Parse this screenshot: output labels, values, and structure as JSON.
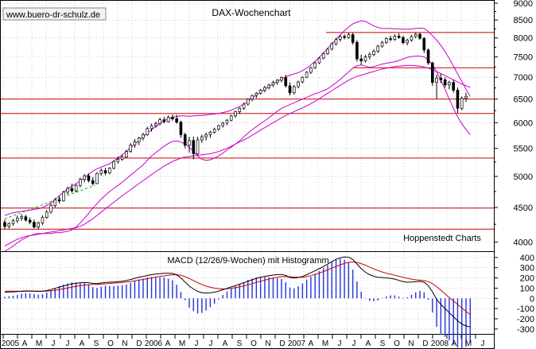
{
  "chart_data": {
    "type": "candlestick",
    "title": "DAX-Wochenchart",
    "watermark": "www.buero-dr-schulz.de",
    "source_label": "Hoppenstedt Charts",
    "price_axis": {
      "ticks": [
        4000,
        4500,
        5000,
        5500,
        6000,
        6500,
        7000,
        7500,
        8000,
        8500,
        9000
      ],
      "scale": "log",
      "range": [
        3900,
        9050
      ]
    },
    "horizontal_lines": [
      8150,
      7230,
      6500,
      6190,
      5320,
      4490,
      4180
    ],
    "candles": [
      [
        4280,
        4320,
        4180,
        4220
      ],
      [
        4220,
        4280,
        4190,
        4260
      ],
      [
        4260,
        4330,
        4230,
        4300
      ],
      [
        4300,
        4380,
        4270,
        4340
      ],
      [
        4340,
        4400,
        4300,
        4360
      ],
      [
        4360,
        4390,
        4290,
        4310
      ],
      [
        4310,
        4350,
        4250,
        4280
      ],
      [
        4280,
        4320,
        4190,
        4210
      ],
      [
        4210,
        4290,
        4180,
        4270
      ],
      [
        4270,
        4380,
        4240,
        4350
      ],
      [
        4350,
        4460,
        4330,
        4430
      ],
      [
        4430,
        4560,
        4410,
        4530
      ],
      [
        4530,
        4650,
        4500,
        4620
      ],
      [
        4620,
        4680,
        4560,
        4600
      ],
      [
        4600,
        4760,
        4590,
        4740
      ],
      [
        4740,
        4830,
        4700,
        4800
      ],
      [
        4800,
        4880,
        4730,
        4760
      ],
      [
        4760,
        4870,
        4740,
        4850
      ],
      [
        4850,
        4980,
        4820,
        4950
      ],
      [
        4950,
        5040,
        4900,
        5010
      ],
      [
        5010,
        5050,
        4900,
        4930
      ],
      [
        4930,
        4990,
        4850,
        4880
      ],
      [
        4880,
        5070,
        4870,
        5050
      ],
      [
        5050,
        5140,
        5010,
        5100
      ],
      [
        5100,
        5150,
        5020,
        5060
      ],
      [
        5060,
        5160,
        5040,
        5140
      ],
      [
        5140,
        5280,
        5120,
        5260
      ],
      [
        5260,
        5350,
        5220,
        5300
      ],
      [
        5300,
        5380,
        5270,
        5340
      ],
      [
        5340,
        5470,
        5320,
        5440
      ],
      [
        5440,
        5600,
        5420,
        5560
      ],
      [
        5560,
        5680,
        5510,
        5620
      ],
      [
        5620,
        5720,
        5560,
        5700
      ],
      [
        5700,
        5800,
        5650,
        5760
      ],
      [
        5760,
        5920,
        5740,
        5880
      ],
      [
        5880,
        5980,
        5820,
        5940
      ],
      [
        5940,
        6020,
        5900,
        5980
      ],
      [
        5980,
        6100,
        5950,
        6060
      ],
      [
        6060,
        6120,
        5990,
        6020
      ],
      [
        6020,
        6150,
        6000,
        6110
      ],
      [
        6110,
        6170,
        6040,
        6080
      ],
      [
        6080,
        6160,
        5980,
        6010
      ],
      [
        6010,
        6040,
        5700,
        5760
      ],
      [
        5760,
        5800,
        5500,
        5560
      ],
      [
        5560,
        5720,
        5420,
        5650
      ],
      [
        5650,
        5720,
        5300,
        5400
      ],
      [
        5400,
        5720,
        5380,
        5660
      ],
      [
        5660,
        5760,
        5600,
        5720
      ],
      [
        5720,
        5800,
        5650,
        5760
      ],
      [
        5760,
        5840,
        5700,
        5810
      ],
      [
        5810,
        5900,
        5780,
        5870
      ],
      [
        5870,
        5960,
        5840,
        5940
      ],
      [
        5940,
        6020,
        5900,
        5990
      ],
      [
        5990,
        6080,
        5950,
        6050
      ],
      [
        6050,
        6160,
        6030,
        6140
      ],
      [
        6140,
        6250,
        6100,
        6230
      ],
      [
        6230,
        6320,
        6180,
        6300
      ],
      [
        6300,
        6420,
        6270,
        6390
      ],
      [
        6390,
        6520,
        6360,
        6500
      ],
      [
        6500,
        6600,
        6450,
        6580
      ],
      [
        6580,
        6660,
        6520,
        6630
      ],
      [
        6630,
        6730,
        6600,
        6700
      ],
      [
        6700,
        6800,
        6650,
        6760
      ],
      [
        6760,
        6850,
        6720,
        6820
      ],
      [
        6820,
        6920,
        6770,
        6880
      ],
      [
        6880,
        6960,
        6820,
        6930
      ],
      [
        6930,
        7020,
        6880,
        6990
      ],
      [
        6990,
        7060,
        6760,
        6800
      ],
      [
        6800,
        6880,
        6580,
        6640
      ],
      [
        6640,
        6820,
        6600,
        6780
      ],
      [
        6780,
        6920,
        6740,
        6890
      ],
      [
        6890,
        7020,
        6860,
        7000
      ],
      [
        7000,
        7150,
        6980,
        7120
      ],
      [
        7120,
        7260,
        7080,
        7230
      ],
      [
        7230,
        7380,
        7200,
        7350
      ],
      [
        7350,
        7500,
        7320,
        7470
      ],
      [
        7470,
        7620,
        7440,
        7580
      ],
      [
        7580,
        7740,
        7550,
        7700
      ],
      [
        7700,
        7880,
        7670,
        7840
      ],
      [
        7840,
        8000,
        7800,
        7960
      ],
      [
        7960,
        8080,
        7900,
        8040
      ],
      [
        8040,
        8100,
        7960,
        8010
      ],
      [
        8010,
        8140,
        7980,
        8090
      ],
      [
        8090,
        8140,
        7820,
        7880
      ],
      [
        7880,
        7940,
        7380,
        7450
      ],
      [
        7450,
        7560,
        7300,
        7400
      ],
      [
        7400,
        7560,
        7360,
        7500
      ],
      [
        7500,
        7620,
        7440,
        7560
      ],
      [
        7560,
        7700,
        7520,
        7650
      ],
      [
        7650,
        7820,
        7600,
        7780
      ],
      [
        7780,
        7920,
        7740,
        7880
      ],
      [
        7880,
        8020,
        7840,
        7980
      ],
      [
        7980,
        8060,
        7900,
        7960
      ],
      [
        7960,
        8100,
        7920,
        8050
      ],
      [
        8050,
        8130,
        7980,
        8010
      ],
      [
        8010,
        8060,
        7830,
        7870
      ],
      [
        7870,
        7980,
        7800,
        7940
      ],
      [
        7940,
        8080,
        7900,
        8040
      ],
      [
        8040,
        8150,
        7990,
        8100
      ],
      [
        8100,
        8140,
        7950,
        7990
      ],
      [
        7990,
        8020,
        7600,
        7680
      ],
      [
        7680,
        7720,
        7300,
        7350
      ],
      [
        7350,
        7380,
        6800,
        6880
      ],
      [
        6880,
        7060,
        6500,
        6980
      ],
      [
        6980,
        7080,
        6860,
        6940
      ],
      [
        6940,
        7000,
        6760,
        6820
      ],
      [
        6820,
        6920,
        6720,
        6880
      ],
      [
        6880,
        6940,
        6640,
        6700
      ],
      [
        6700,
        6760,
        6200,
        6300
      ],
      [
        6300,
        6560,
        6260,
        6520
      ],
      [
        6520,
        6640,
        6440,
        6560
      ]
    ],
    "bollinger_upper": [
      4380,
      4400,
      4420,
      4430,
      4440,
      4450,
      4460,
      4470,
      4480,
      4500,
      4530,
      4570,
      4620,
      4680,
      4740,
      4790,
      4840,
      4880,
      4920,
      4980,
      5040,
      5090,
      5130,
      5160,
      5190,
      5220,
      5270,
      5320,
      5380,
      5440,
      5510,
      5580,
      5650,
      5720,
      5790,
      5860,
      5920,
      5980,
      6040,
      6080,
      6110,
      6130,
      6140,
      6140,
      6130,
      6140,
      6150,
      6150,
      6160,
      6170,
      6180,
      6190,
      6210,
      6230,
      6260,
      6300,
      6340,
      6390,
      6450,
      6520,
      6590,
      6660,
      6720,
      6780,
      6840,
      6900,
      6960,
      7010,
      7050,
      7080,
      7110,
      7160,
      7220,
      7300,
      7390,
      7490,
      7600,
      7720,
      7840,
      7960,
      8080,
      8200,
      8300,
      8390,
      8440,
      8480,
      8460,
      8400,
      8330,
      8290,
      8260,
      8260,
      8260,
      8250,
      8250,
      8240,
      8240,
      8250,
      8260,
      8270,
      8260,
      8180,
      8060,
      7940,
      7800,
      7640,
      7460,
      7270,
      7080,
      6900,
      6720,
      6560
    ],
    "bollinger_lower": [
      3880,
      3910,
      3950,
      3990,
      4030,
      4060,
      4090,
      4110,
      4120,
      4120,
      4120,
      4120,
      4130,
      4130,
      4140,
      4150,
      4170,
      4210,
      4270,
      4340,
      4410,
      4490,
      4560,
      4630,
      4690,
      4750,
      4800,
      4850,
      4900,
      4960,
      5020,
      5080,
      5140,
      5200,
      5280,
      5360,
      5420,
      5480,
      5540,
      5590,
      5630,
      5640,
      5620,
      5580,
      5520,
      5440,
      5360,
      5300,
      5280,
      5290,
      5320,
      5360,
      5410,
      5470,
      5520,
      5580,
      5640,
      5720,
      5790,
      5860,
      5920,
      5980,
      6040,
      6100,
      6170,
      6240,
      6300,
      6340,
      6380,
      6420,
      6460,
      6500,
      6540,
      6580,
      6620,
      6650,
      6690,
      6730,
      6800,
      6870,
      6950,
      7040,
      7130,
      7220,
      7280,
      7300,
      7270,
      7240,
      7260,
      7290,
      7320,
      7340,
      7360,
      7380,
      7410,
      7450,
      7490,
      7510,
      7520,
      7520,
      7500,
      7430,
      7300,
      7130,
      6930,
      6720,
      6500,
      6300,
      6120,
      5980,
      5860,
      5760
    ],
    "moving_average": [
      3950,
      3980,
      4010,
      4040,
      4060,
      4080,
      4090,
      4100,
      4110,
      4120,
      4130,
      4140,
      4150,
      4160,
      4170,
      4180,
      4190,
      4200,
      4220,
      4250,
      4290,
      4330,
      4380,
      4430,
      4480,
      4530,
      4580,
      4630,
      4680,
      4730,
      4780,
      4830,
      4880,
      4930,
      4980,
      5030,
      5080,
      5130,
      5180,
      5220,
      5260,
      5290,
      5320,
      5340,
      5350,
      5360,
      5370,
      5380,
      5390,
      5400,
      5420,
      5440,
      5470,
      5500,
      5540,
      5580,
      5620,
      5660,
      5700,
      5750,
      5800,
      5850,
      5900,
      5950,
      6000,
      6050,
      6100,
      6150,
      6190,
      6230,
      6270,
      6310,
      6350,
      6400,
      6450,
      6510,
      6570,
      6630,
      6690,
      6750,
      6810,
      6870,
      6930,
      6980,
      7020,
      7050,
      7080,
      7110,
      7140,
      7170,
      7200,
      7220,
      7240,
      7260,
      7270,
      7280,
      7290,
      7290,
      7280,
      7270,
      7250,
      7220,
      7180,
      7140,
      7090,
      7040,
      6990,
      6940,
      6890,
      6840,
      6800,
      6760
    ],
    "trend_line": {
      "from_index": 14,
      "to_index": 0,
      "from_value": 4880,
      "to_value": 4330,
      "color": "#00aa00",
      "style": "dashed"
    },
    "macd": {
      "title": "MACD (12/26/9-Wochen) mit Histogramm",
      "axis_ticks": [
        400,
        300,
        200,
        100,
        0,
        -100,
        -200,
        -300
      ],
      "range": [
        -340,
        430
      ],
      "macd_line": [
        60,
        62,
        64,
        66,
        70,
        72,
        72,
        70,
        68,
        70,
        76,
        86,
        98,
        110,
        122,
        132,
        142,
        148,
        152,
        156,
        152,
        146,
        144,
        150,
        156,
        158,
        160,
        164,
        168,
        174,
        184,
        196,
        206,
        214,
        224,
        232,
        238,
        242,
        246,
        246,
        244,
        230,
        200,
        160,
        120,
        92,
        68,
        56,
        52,
        54,
        60,
        70,
        84,
        98,
        112,
        124,
        138,
        152,
        168,
        182,
        196,
        206,
        214,
        222,
        228,
        232,
        234,
        224,
        204,
        198,
        204,
        214,
        232,
        250,
        270,
        290,
        312,
        334,
        360,
        382,
        396,
        404,
        402,
        380,
        336,
        290,
        256,
        232,
        216,
        206,
        204,
        200,
        196,
        188,
        176,
        164,
        158,
        160,
        164,
        166,
        158,
        124,
        64,
        -10,
        -60,
        -100,
        -140,
        -180,
        -220,
        -250,
        -270,
        -280
      ],
      "signal_line": [
        70,
        70,
        70,
        69,
        68,
        69,
        70,
        70,
        70,
        70,
        71,
        74,
        79,
        86,
        94,
        102,
        110,
        118,
        124,
        130,
        134,
        136,
        137,
        139,
        142,
        146,
        149,
        152,
        156,
        160,
        165,
        171,
        178,
        185,
        192,
        200,
        208,
        214,
        220,
        226,
        230,
        232,
        226,
        212,
        194,
        174,
        154,
        136,
        120,
        108,
        100,
        94,
        92,
        94,
        98,
        104,
        112,
        122,
        132,
        144,
        156,
        168,
        178,
        188,
        198,
        206,
        212,
        214,
        212,
        208,
        206,
        206,
        212,
        222,
        234,
        248,
        262,
        278,
        296,
        312,
        328,
        342,
        352,
        356,
        352,
        340,
        324,
        306,
        288,
        272,
        258,
        246,
        236,
        226,
        216,
        206,
        196,
        188,
        182,
        178,
        174,
        164,
        144,
        114,
        80,
        44,
        8,
        -26,
        -60,
        -94,
        -128,
        -160
      ],
      "histogram_color": "#2233dd"
    },
    "x_axis": {
      "labels": [
        "2005",
        "A",
        "M",
        "J",
        "J",
        "A",
        "S",
        "O",
        "N",
        "D",
        "2006",
        "A",
        "M",
        "J",
        "J",
        "A",
        "S",
        "O",
        "N",
        "D",
        "2007",
        "A",
        "M",
        "J",
        "J",
        "A",
        "S",
        "O",
        "N",
        "D",
        "2008",
        "A",
        "M",
        "J"
      ]
    }
  },
  "colors": {
    "bollinger": "#cc00cc",
    "moving_average": "#cc00cc",
    "horizontal_line": "#cc0000",
    "candle": "#000000",
    "macd_line": "#000000",
    "signal_line": "#cc0000",
    "grid": "#aaaaaa",
    "border": "#000000"
  }
}
